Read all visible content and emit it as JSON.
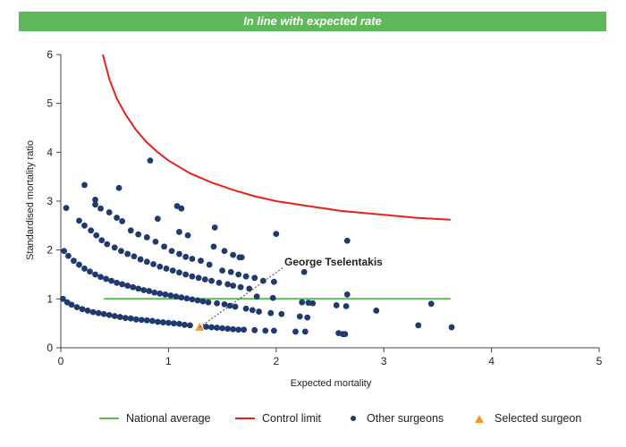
{
  "header": {
    "banner_text": "In line with expected rate",
    "banner_color": "#5fb85a"
  },
  "chart_data": {
    "type": "scatter",
    "xlabel": "Expected mortality",
    "ylabel": "Standardised mortality ratio",
    "xlim": [
      0,
      5
    ],
    "ylim": [
      0,
      6
    ],
    "xticks": [
      0,
      1,
      2,
      3,
      4,
      5
    ],
    "yticks": [
      0,
      1,
      2,
      3,
      4,
      5,
      6
    ],
    "grid": false,
    "legend_position": "bottom",
    "annotation": {
      "text": "George Tselentakis",
      "x": 1.29,
      "y": 0.42
    },
    "series": [
      {
        "name": "National average",
        "kind": "line",
        "color": "#5fb85a",
        "points": [
          [
            0.4,
            1
          ],
          [
            3.62,
            1
          ]
        ]
      },
      {
        "name": "Control limit",
        "kind": "line",
        "color": "#e8201c",
        "points": [
          [
            0.39,
            6.0
          ],
          [
            0.45,
            5.5
          ],
          [
            0.52,
            5.1
          ],
          [
            0.6,
            4.78
          ],
          [
            0.7,
            4.45
          ],
          [
            0.8,
            4.2
          ],
          [
            0.9,
            4.0
          ],
          [
            1.0,
            3.83
          ],
          [
            1.2,
            3.57
          ],
          [
            1.4,
            3.38
          ],
          [
            1.6,
            3.23
          ],
          [
            1.8,
            3.1
          ],
          [
            2.0,
            3.0
          ],
          [
            2.3,
            2.9
          ],
          [
            2.6,
            2.8
          ],
          [
            3.0,
            2.72
          ],
          [
            3.3,
            2.66
          ],
          [
            3.62,
            2.62
          ]
        ]
      },
      {
        "name": "Other surgeons",
        "kind": "scatter",
        "color": "#1f3a6e",
        "points": [
          [
            0.02,
            1.0
          ],
          [
            0.06,
            0.93
          ],
          [
            0.1,
            0.88
          ],
          [
            0.15,
            0.83
          ],
          [
            0.2,
            0.79
          ],
          [
            0.25,
            0.76
          ],
          [
            0.3,
            0.73
          ],
          [
            0.35,
            0.71
          ],
          [
            0.4,
            0.69
          ],
          [
            0.45,
            0.67
          ],
          [
            0.5,
            0.65
          ],
          [
            0.55,
            0.63
          ],
          [
            0.6,
            0.61
          ],
          [
            0.65,
            0.6
          ],
          [
            0.7,
            0.58
          ],
          [
            0.75,
            0.57
          ],
          [
            0.8,
            0.56
          ],
          [
            0.85,
            0.55
          ],
          [
            0.9,
            0.53
          ],
          [
            0.95,
            0.52
          ],
          [
            1.0,
            0.51
          ],
          [
            1.05,
            0.5
          ],
          [
            1.1,
            0.49
          ],
          [
            1.15,
            0.47
          ],
          [
            1.2,
            0.46
          ],
          [
            1.35,
            0.43
          ],
          [
            1.4,
            0.42
          ],
          [
            1.45,
            0.41
          ],
          [
            1.5,
            0.4
          ],
          [
            1.55,
            0.39
          ],
          [
            1.6,
            0.38
          ],
          [
            1.65,
            0.37
          ],
          [
            1.7,
            0.37
          ],
          [
            1.8,
            0.36
          ],
          [
            1.9,
            0.35
          ],
          [
            1.98,
            0.35
          ],
          [
            2.18,
            0.33
          ],
          [
            2.27,
            0.33
          ],
          [
            2.58,
            0.3
          ],
          [
            2.62,
            0.28
          ],
          [
            2.64,
            0.28
          ],
          [
            0.03,
            1.98
          ],
          [
            0.07,
            1.88
          ],
          [
            0.12,
            1.78
          ],
          [
            0.17,
            1.7
          ],
          [
            0.22,
            1.62
          ],
          [
            0.27,
            1.56
          ],
          [
            0.32,
            1.5
          ],
          [
            0.37,
            1.45
          ],
          [
            0.42,
            1.41
          ],
          [
            0.47,
            1.37
          ],
          [
            0.52,
            1.33
          ],
          [
            0.57,
            1.3
          ],
          [
            0.62,
            1.27
          ],
          [
            0.67,
            1.24
          ],
          [
            0.72,
            1.21
          ],
          [
            0.77,
            1.18
          ],
          [
            0.82,
            1.16
          ],
          [
            0.87,
            1.13
          ],
          [
            0.92,
            1.11
          ],
          [
            0.97,
            1.09
          ],
          [
            1.02,
            1.07
          ],
          [
            1.07,
            1.05
          ],
          [
            1.12,
            1.03
          ],
          [
            1.17,
            1.01
          ],
          [
            1.22,
            0.99
          ],
          [
            1.27,
            0.97
          ],
          [
            1.32,
            0.95
          ],
          [
            1.37,
            0.93
          ],
          [
            1.45,
            0.91
          ],
          [
            1.52,
            0.89
          ],
          [
            1.57,
            0.86
          ],
          [
            1.62,
            0.84
          ],
          [
            1.72,
            0.8
          ],
          [
            1.78,
            0.77
          ],
          [
            1.84,
            0.74
          ],
          [
            1.95,
            0.71
          ],
          [
            2.05,
            0.69
          ],
          [
            2.22,
            0.64
          ],
          [
            2.29,
            0.62
          ],
          [
            2.56,
            0.87
          ],
          [
            2.65,
            0.85
          ],
          [
            2.93,
            0.76
          ],
          [
            3.32,
            0.46
          ],
          [
            3.44,
            0.9
          ],
          [
            3.63,
            0.42
          ],
          [
            0.17,
            2.6
          ],
          [
            0.22,
            2.5
          ],
          [
            0.28,
            2.4
          ],
          [
            0.33,
            2.3
          ],
          [
            0.38,
            2.2
          ],
          [
            0.43,
            2.12
          ],
          [
            0.5,
            2.05
          ],
          [
            0.56,
            1.98
          ],
          [
            0.62,
            1.92
          ],
          [
            0.68,
            1.87
          ],
          [
            0.74,
            1.81
          ],
          [
            0.8,
            1.76
          ],
          [
            0.86,
            1.71
          ],
          [
            0.92,
            1.66
          ],
          [
            0.98,
            1.62
          ],
          [
            1.04,
            1.58
          ],
          [
            1.1,
            1.54
          ],
          [
            1.16,
            1.5
          ],
          [
            1.22,
            1.46
          ],
          [
            1.28,
            1.43
          ],
          [
            1.34,
            1.4
          ],
          [
            1.4,
            1.37
          ],
          [
            1.47,
            1.33
          ],
          [
            1.55,
            1.3
          ],
          [
            1.6,
            1.27
          ],
          [
            1.67,
            1.24
          ],
          [
            1.75,
            1.21
          ],
          [
            1.82,
            1.05
          ],
          [
            1.97,
            1.02
          ],
          [
            2.24,
            0.93
          ],
          [
            2.3,
            0.92
          ],
          [
            2.34,
            0.91
          ],
          [
            2.66,
            1.09
          ],
          [
            0.32,
            2.93
          ],
          [
            0.37,
            2.85
          ],
          [
            0.45,
            2.77
          ],
          [
            0.52,
            2.66
          ],
          [
            0.57,
            2.59
          ],
          [
            0.65,
            2.4
          ],
          [
            0.72,
            2.32
          ],
          [
            0.8,
            2.26
          ],
          [
            0.88,
            2.17
          ],
          [
            0.96,
            2.07
          ],
          [
            1.03,
            1.98
          ],
          [
            1.1,
            1.92
          ],
          [
            1.16,
            1.86
          ],
          [
            1.22,
            1.82
          ],
          [
            1.3,
            1.78
          ],
          [
            1.38,
            1.7
          ],
          [
            1.5,
            1.58
          ],
          [
            1.58,
            1.55
          ],
          [
            1.65,
            1.5
          ],
          [
            1.72,
            1.46
          ],
          [
            1.8,
            1.43
          ],
          [
            1.88,
            1.37
          ],
          [
            1.98,
            1.35
          ],
          [
            2.26,
            1.55
          ],
          [
            0.05,
            2.86
          ],
          [
            0.22,
            3.33
          ],
          [
            0.32,
            3.03
          ],
          [
            0.54,
            3.27
          ],
          [
            0.83,
            3.83
          ],
          [
            0.9,
            2.64
          ],
          [
            1.08,
            2.9
          ],
          [
            1.12,
            2.85
          ],
          [
            1.1,
            2.37
          ],
          [
            1.18,
            2.3
          ],
          [
            1.43,
            2.46
          ],
          [
            1.42,
            2.07
          ],
          [
            1.52,
            1.98
          ],
          [
            1.6,
            1.9
          ],
          [
            1.66,
            1.85
          ],
          [
            1.68,
            1.85
          ],
          [
            2.0,
            2.33
          ],
          [
            2.66,
            2.19
          ]
        ]
      },
      {
        "name": "Selected surgeon",
        "kind": "scatter",
        "marker": "triangle",
        "color": "#f39c2b",
        "points": [
          [
            1.29,
            0.42
          ]
        ]
      }
    ]
  }
}
